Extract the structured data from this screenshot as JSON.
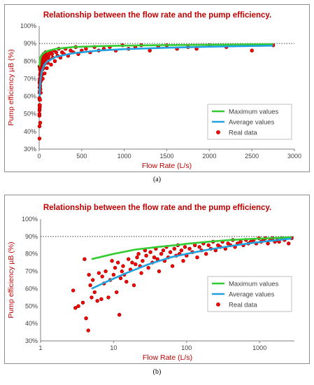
{
  "chart_data": [
    {
      "panel": "(a)",
      "type": "scatter",
      "title": "Relationship between the flow rate and the pump efficiency.",
      "xlabel": "Flow Rate (L/s)",
      "ylabel": "Pump efficiency µB (%)",
      "xscale": "linear",
      "xlim": [
        0,
        3000
      ],
      "ylim": [
        30,
        100
      ],
      "xticks": [
        "0",
        "500",
        "1000",
        "1500",
        "2000",
        "2500",
        "3000"
      ],
      "yticks": [
        "30%",
        "40%",
        "50%",
        "60%",
        "70%",
        "80%",
        "90%",
        "100%"
      ],
      "reference_line": 90,
      "legend_position": "bottom-right",
      "series": [
        {
          "name": "Maximum values",
          "kind": "line",
          "color": "#33cc33",
          "points": [
            [
              5,
              77
            ],
            [
              10,
              80
            ],
            [
              20,
              82.5
            ],
            [
              40,
              84
            ],
            [
              70,
              85
            ],
            [
              100,
              85.8
            ],
            [
              200,
              87
            ],
            [
              400,
              88
            ],
            [
              700,
              88.5
            ],
            [
              1000,
              88.8
            ],
            [
              1500,
              89.1
            ],
            [
              2000,
              89.3
            ],
            [
              2750,
              89.6
            ]
          ]
        },
        {
          "name": "Average values",
          "kind": "line",
          "color": "#1fa2e0",
          "points": [
            [
              5,
              60
            ],
            [
              8,
              64
            ],
            [
              15,
              69
            ],
            [
              30,
              74
            ],
            [
              60,
              78
            ],
            [
              100,
              80
            ],
            [
              200,
              82.5
            ],
            [
              400,
              84.5
            ],
            [
              700,
              86
            ],
            [
              1000,
              86.8
            ],
            [
              1500,
              87.6
            ],
            [
              2000,
              88.2
            ],
            [
              2750,
              88.8
            ]
          ]
        },
        {
          "name": "Real data",
          "kind": "scatter",
          "color": "#ff0000",
          "points": [
            [
              2.8,
              59
            ],
            [
              3,
              49
            ],
            [
              3.3,
              50
            ],
            [
              3.8,
              52
            ],
            [
              4,
              77
            ],
            [
              4.2,
              43
            ],
            [
              4.5,
              36
            ],
            [
              4.6,
              68
            ],
            [
              4.8,
              62
            ],
            [
              5,
              55
            ],
            [
              5.2,
              65
            ],
            [
              5.5,
              58
            ],
            [
              6,
              53
            ],
            [
              6.3,
              69
            ],
            [
              6.8,
              54
            ],
            [
              7,
              67
            ],
            [
              7.4,
              63
            ],
            [
              7.8,
              70
            ],
            [
              8.5,
              55
            ],
            [
              9,
              65
            ],
            [
              9.5,
              76
            ],
            [
              10,
              68
            ],
            [
              10.5,
              72
            ],
            [
              11,
              58
            ],
            [
              11.5,
              75
            ],
            [
              12,
              45
            ],
            [
              12.5,
              66
            ],
            [
              13,
              70
            ],
            [
              13.5,
              73
            ],
            [
              14,
              68
            ],
            [
              15,
              64
            ],
            [
              16,
              77
            ],
            [
              17,
              71
            ],
            [
              18,
              75
            ],
            [
              19,
              62
            ],
            [
              20,
              74
            ],
            [
              21,
              78
            ],
            [
              22,
              80
            ],
            [
              23,
              73
            ],
            [
              24,
              69
            ],
            [
              25,
              76
            ],
            [
              27,
              82
            ],
            [
              28,
              79
            ],
            [
              30,
              72
            ],
            [
              32,
              81
            ],
            [
              34,
              75
            ],
            [
              36,
              78
            ],
            [
              38,
              83
            ],
            [
              40,
              77
            ],
            [
              42,
              70
            ],
            [
              45,
              80
            ],
            [
              48,
              82
            ],
            [
              50,
              76
            ],
            [
              53,
              84
            ],
            [
              56,
              78
            ],
            [
              60,
              81
            ],
            [
              64,
              73
            ],
            [
              68,
              83
            ],
            [
              72,
              79
            ],
            [
              76,
              85
            ],
            [
              80,
              80
            ],
            [
              85,
              82
            ],
            [
              90,
              76
            ],
            [
              95,
              84
            ],
            [
              100,
              79
            ],
            [
              110,
              83
            ],
            [
              120,
              81
            ],
            [
              130,
              85
            ],
            [
              140,
              78
            ],
            [
              150,
              84
            ],
            [
              160,
              82
            ],
            [
              170,
              86
            ],
            [
              185,
              80
            ],
            [
              200,
              85
            ],
            [
              215,
              83
            ],
            [
              230,
              87
            ],
            [
              250,
              82
            ],
            [
              270,
              85
            ],
            [
              290,
              84
            ],
            [
              310,
              87
            ],
            [
              340,
              83
            ],
            [
              370,
              86
            ],
            [
              400,
              85
            ],
            [
              430,
              88
            ],
            [
              460,
              84
            ],
            [
              500,
              86
            ],
            [
              550,
              87
            ],
            [
              600,
              85
            ],
            [
              650,
              88
            ],
            [
              700,
              86
            ],
            [
              760,
              87
            ],
            [
              830,
              88
            ],
            [
              900,
              86
            ],
            [
              980,
              89
            ],
            [
              1050,
              87
            ],
            [
              1130,
              88
            ],
            [
              1200,
              89
            ],
            [
              1300,
              86
            ],
            [
              1400,
              88
            ],
            [
              1500,
              89
            ],
            [
              1620,
              87
            ],
            [
              1750,
              88
            ],
            [
              1850,
              87
            ],
            [
              2000,
              89
            ],
            [
              2200,
              88
            ],
            [
              2500,
              86
            ],
            [
              2750,
              89
            ]
          ]
        }
      ]
    },
    {
      "panel": "(b)",
      "type": "scatter",
      "title": "Relationship between the flow rate and the pump efficiency.",
      "xlabel": "Flow Rate (L/s)",
      "ylabel": "Pump efficiency µB (%)",
      "xscale": "log",
      "xlim": [
        1,
        3000
      ],
      "ylim": [
        30,
        100
      ],
      "xticks": [
        "1",
        "10",
        "100",
        "1000"
      ],
      "yticks": [
        "30%",
        "40%",
        "50%",
        "60%",
        "70%",
        "80%",
        "90%",
        "100%"
      ],
      "reference_line": 90,
      "legend_position": "bottom-right",
      "series": [
        {
          "name": "Maximum values",
          "kind": "line",
          "color": "#33cc33",
          "points": [
            [
              5,
              77
            ],
            [
              10,
              80
            ],
            [
              20,
              82.5
            ],
            [
              40,
              84
            ],
            [
              70,
              85
            ],
            [
              100,
              85.8
            ],
            [
              200,
              87
            ],
            [
              400,
              88
            ],
            [
              700,
              88.5
            ],
            [
              1000,
              88.8
            ],
            [
              1500,
              89.1
            ],
            [
              2000,
              89.3
            ],
            [
              2750,
              89.6
            ]
          ]
        },
        {
          "name": "Average values",
          "kind": "line",
          "color": "#1fa2e0",
          "points": [
            [
              5,
              60
            ],
            [
              8,
              64
            ],
            [
              15,
              69
            ],
            [
              30,
              74
            ],
            [
              60,
              78
            ],
            [
              100,
              80
            ],
            [
              200,
              82.5
            ],
            [
              400,
              84.5
            ],
            [
              700,
              86
            ],
            [
              1000,
              86.8
            ],
            [
              1500,
              87.6
            ],
            [
              2000,
              88.2
            ],
            [
              2750,
              88.8
            ]
          ]
        },
        {
          "name": "Real data",
          "kind": "scatter",
          "color": "#ff0000",
          "points": [
            [
              2.8,
              59
            ],
            [
              3,
              49
            ],
            [
              3.3,
              50
            ],
            [
              3.8,
              52
            ],
            [
              4,
              77
            ],
            [
              4.2,
              43
            ],
            [
              4.5,
              36
            ],
            [
              4.6,
              68
            ],
            [
              4.8,
              62
            ],
            [
              5,
              55
            ],
            [
              5.2,
              65
            ],
            [
              5.5,
              58
            ],
            [
              6,
              53
            ],
            [
              6.3,
              69
            ],
            [
              6.8,
              54
            ],
            [
              7,
              67
            ],
            [
              7.4,
              63
            ],
            [
              7.8,
              70
            ],
            [
              8.5,
              55
            ],
            [
              9,
              65
            ],
            [
              9.5,
              76
            ],
            [
              10,
              68
            ],
            [
              10.5,
              72
            ],
            [
              11,
              58
            ],
            [
              11.5,
              75
            ],
            [
              12,
              45
            ],
            [
              12.5,
              66
            ],
            [
              13,
              70
            ],
            [
              13.5,
              73
            ],
            [
              14,
              68
            ],
            [
              15,
              64
            ],
            [
              16,
              77
            ],
            [
              17,
              71
            ],
            [
              18,
              75
            ],
            [
              19,
              62
            ],
            [
              20,
              74
            ],
            [
              21,
              78
            ],
            [
              22,
              80
            ],
            [
              23,
              73
            ],
            [
              24,
              69
            ],
            [
              25,
              76
            ],
            [
              27,
              82
            ],
            [
              28,
              79
            ],
            [
              30,
              72
            ],
            [
              32,
              81
            ],
            [
              34,
              75
            ],
            [
              36,
              78
            ],
            [
              38,
              83
            ],
            [
              40,
              77
            ],
            [
              42,
              70
            ],
            [
              45,
              80
            ],
            [
              48,
              82
            ],
            [
              50,
              76
            ],
            [
              53,
              84
            ],
            [
              56,
              78
            ],
            [
              60,
              81
            ],
            [
              64,
              73
            ],
            [
              68,
              83
            ],
            [
              72,
              79
            ],
            [
              76,
              85
            ],
            [
              80,
              80
            ],
            [
              85,
              82
            ],
            [
              90,
              76
            ],
            [
              95,
              84
            ],
            [
              100,
              79
            ],
            [
              110,
              83
            ],
            [
              120,
              81
            ],
            [
              130,
              85
            ],
            [
              140,
              78
            ],
            [
              150,
              84
            ],
            [
              160,
              82
            ],
            [
              170,
              86
            ],
            [
              185,
              80
            ],
            [
              200,
              85
            ],
            [
              215,
              83
            ],
            [
              230,
              87
            ],
            [
              250,
              82
            ],
            [
              270,
              85
            ],
            [
              290,
              84
            ],
            [
              310,
              87
            ],
            [
              340,
              83
            ],
            [
              370,
              86
            ],
            [
              400,
              85
            ],
            [
              430,
              88
            ],
            [
              460,
              84
            ],
            [
              500,
              86
            ],
            [
              550,
              87
            ],
            [
              600,
              85
            ],
            [
              650,
              88
            ],
            [
              700,
              86
            ],
            [
              760,
              87
            ],
            [
              830,
              88
            ],
            [
              900,
              86
            ],
            [
              980,
              89
            ],
            [
              1050,
              87
            ],
            [
              1130,
              88
            ],
            [
              1200,
              89
            ],
            [
              1300,
              86
            ],
            [
              1400,
              88
            ],
            [
              1500,
              89
            ],
            [
              1620,
              87
            ],
            [
              1750,
              88
            ],
            [
              1850,
              87
            ],
            [
              2000,
              89
            ],
            [
              2200,
              88
            ],
            [
              2500,
              86
            ],
            [
              2750,
              89
            ]
          ]
        }
      ]
    }
  ]
}
